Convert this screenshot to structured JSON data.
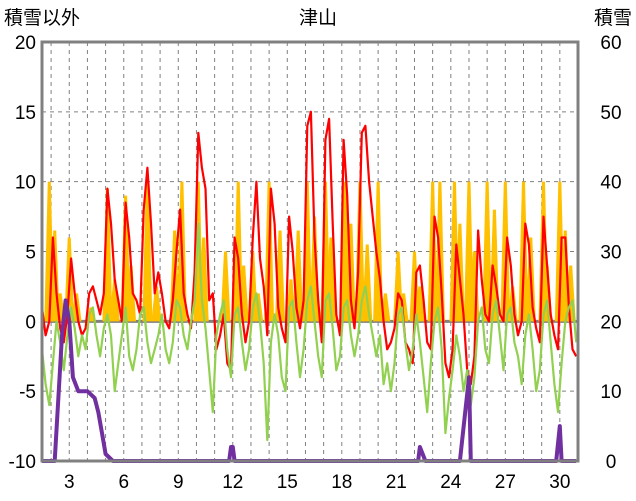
{
  "chart_data": {
    "type": "line",
    "title": "津山",
    "ylabel_left": "積雪以外",
    "ylabel_right": "積雪",
    "x_range": [
      1.5,
      31.0
    ],
    "ylim_left": [
      -10,
      20
    ],
    "ylim_right": [
      0,
      60
    ],
    "x_ticks": [
      3,
      6,
      9,
      12,
      15,
      18,
      21,
      24,
      27,
      30
    ],
    "x_tick_labels": [
      "3",
      "6",
      "9",
      "12",
      "15",
      "18",
      "21",
      "24",
      "27",
      "30"
    ],
    "y_left_ticks": [
      -10,
      -5,
      0,
      5,
      10,
      15,
      20
    ],
    "y_left_tick_labels": [
      "-10",
      "-5",
      "0",
      "5",
      "10",
      "15",
      "20"
    ],
    "y_right_ticks": [
      0,
      10,
      20,
      30,
      40,
      50,
      60
    ],
    "y_right_tick_labels": [
      "0",
      "10",
      "20",
      "30",
      "40",
      "50",
      "60"
    ],
    "grid": "vertical dashed at each day, horizontal dashed at each left tick",
    "colors": {
      "precip": "#ffc000",
      "temp_max_series": "#ff0000",
      "temp_series": "#92d050",
      "snow_depth": "#7030a0",
      "zero_line": "#808080",
      "frame": "#808080"
    },
    "series": [
      {
        "axis": "left",
        "color": "#ffc000",
        "style": "bars",
        "x": [
          1.9,
          2.2,
          2.5,
          3.0,
          3.4,
          4.2,
          5.1,
          5.5,
          6.1,
          6.4,
          7.3,
          7.8,
          8.8,
          9.2,
          10.1,
          10.4,
          11.6,
          12.3,
          12.6,
          13.1,
          13.4,
          14.0,
          14.6,
          15.2,
          15.6,
          16.1,
          16.5,
          17.1,
          17.4,
          18.2,
          18.5,
          19.0,
          19.4,
          20.0,
          20.4,
          21.1,
          21.4,
          22.0,
          22.3,
          23.0,
          23.4,
          24.2,
          24.5,
          25.0,
          25.3,
          26.0,
          26.4,
          27.0,
          27.4,
          28.0,
          28.4,
          29.1,
          29.3,
          30.0,
          30.3,
          30.6
        ],
        "values": [
          10,
          6.5,
          2,
          6,
          2,
          1,
          9.5,
          3,
          9,
          4,
          10,
          2.5,
          6.5,
          10,
          10,
          6,
          5,
          10,
          4,
          5,
          2,
          10,
          6.5,
          3,
          6.5,
          10,
          7.5,
          10,
          6,
          10,
          7,
          10,
          5.5,
          10,
          2,
          5,
          2,
          5,
          2.5,
          10,
          10,
          10,
          7,
          10,
          5,
          10,
          8,
          10,
          2.5,
          10,
          6,
          10,
          4,
          10,
          6.5,
          4
        ]
      },
      {
        "axis": "left",
        "color": "#ff0000",
        "style": "line",
        "x": [
          1.5,
          1.7,
          1.9,
          2.1,
          2.3,
          2.5,
          2.7,
          2.9,
          3.1,
          3.3,
          3.5,
          3.7,
          3.9,
          4.1,
          4.3,
          4.5,
          4.7,
          4.9,
          5.1,
          5.3,
          5.5,
          5.7,
          5.9,
          6.1,
          6.3,
          6.5,
          6.7,
          6.9,
          7.1,
          7.3,
          7.5,
          7.7,
          7.9,
          8.1,
          8.3,
          8.5,
          8.7,
          8.9,
          9.1,
          9.3,
          9.5,
          9.7,
          9.9,
          10.1,
          10.3,
          10.5,
          10.7,
          10.9,
          11.1,
          11.3,
          11.5,
          11.7,
          11.9,
          12.1,
          12.3,
          12.5,
          12.7,
          12.9,
          13.1,
          13.3,
          13.5,
          13.7,
          13.9,
          14.1,
          14.3,
          14.5,
          14.7,
          14.9,
          15.1,
          15.3,
          15.5,
          15.7,
          15.9,
          16.1,
          16.3,
          16.5,
          16.7,
          16.9,
          17.1,
          17.3,
          17.5,
          17.7,
          17.9,
          18.1,
          18.3,
          18.5,
          18.7,
          18.9,
          19.1,
          19.3,
          19.5,
          19.7,
          19.9,
          20.1,
          20.3,
          20.5,
          20.7,
          20.9,
          21.1,
          21.3,
          21.5,
          21.7,
          21.9,
          22.1,
          22.3,
          22.5,
          22.7,
          22.9,
          23.1,
          23.3,
          23.5,
          23.7,
          23.9,
          24.1,
          24.3,
          24.5,
          24.7,
          24.9,
          25.1,
          25.3,
          25.5,
          25.7,
          25.9,
          26.1,
          26.3,
          26.5,
          26.7,
          26.9,
          27.1,
          27.3,
          27.5,
          27.7,
          27.9,
          28.1,
          28.3,
          28.5,
          28.7,
          28.9,
          29.1,
          29.3,
          29.5,
          29.7,
          29.9,
          30.1,
          30.3,
          30.5,
          30.7,
          30.9
        ],
        "values": [
          1.0,
          -1.0,
          0.0,
          6.0,
          2.0,
          -0.5,
          -1.5,
          0.5,
          4.5,
          2.0,
          0.0,
          -1.0,
          -0.5,
          2.0,
          2.5,
          1.5,
          0.5,
          2.0,
          9.5,
          7.0,
          3.0,
          1.5,
          0.0,
          8.5,
          6.0,
          2.0,
          1.5,
          0.5,
          8.0,
          11.0,
          7.0,
          2.0,
          3.5,
          2.0,
          0.0,
          -0.5,
          1.5,
          5.0,
          8.0,
          2.0,
          0.5,
          -0.5,
          3.5,
          13.5,
          11.0,
          9.5,
          1.5,
          2.0,
          -2.0,
          -1.0,
          0.5,
          -3.0,
          -3.5,
          6.0,
          4.5,
          0.5,
          -1.5,
          0.0,
          6.0,
          10.0,
          4.5,
          2.5,
          -1.0,
          9.5,
          7.0,
          1.0,
          -0.5,
          -1.5,
          7.5,
          5.0,
          1.0,
          -0.5,
          1.5,
          14.0,
          15.0,
          6.0,
          1.5,
          -1.5,
          13.0,
          14.5,
          7.0,
          0.5,
          -1.0,
          13.0,
          9.0,
          1.5,
          -0.5,
          3.5,
          13.5,
          14.0,
          10.0,
          7.5,
          5.0,
          3.0,
          0.0,
          -2.0,
          -1.5,
          -0.5,
          2.0,
          1.5,
          -1.5,
          -2.0,
          -3.0,
          3.5,
          4.0,
          1.5,
          -1.5,
          -2.0,
          7.5,
          6.0,
          2.0,
          -3.0,
          -4.0,
          -2.0,
          5.5,
          3.0,
          0.5,
          -3.5,
          -4.5,
          -2.5,
          6.5,
          3.0,
          0.5,
          0.0,
          4.0,
          2.5,
          0.5,
          0.0,
          6.0,
          4.0,
          0.5,
          -1.0,
          0.0,
          7.0,
          5.5,
          1.0,
          -0.5,
          -1.5,
          7.5,
          4.0,
          0.5,
          -1.0,
          -2.0,
          6.0,
          6.0,
          1.0,
          -2.0,
          -2.5
        ]
      },
      {
        "axis": "left",
        "color": "#92d050",
        "style": "line",
        "x": [
          1.5,
          1.7,
          1.9,
          2.1,
          2.3,
          2.5,
          2.7,
          2.9,
          3.1,
          3.3,
          3.5,
          3.7,
          3.9,
          4.1,
          4.3,
          4.5,
          4.7,
          4.9,
          5.1,
          5.3,
          5.5,
          5.7,
          5.9,
          6.1,
          6.3,
          6.5,
          6.7,
          6.9,
          7.1,
          7.3,
          7.5,
          7.7,
          7.9,
          8.1,
          8.3,
          8.5,
          8.7,
          8.9,
          9.1,
          9.3,
          9.5,
          9.7,
          9.9,
          10.1,
          10.3,
          10.5,
          10.7,
          10.9,
          11.1,
          11.3,
          11.5,
          11.7,
          11.9,
          12.1,
          12.3,
          12.5,
          12.7,
          12.9,
          13.1,
          13.3,
          13.5,
          13.7,
          13.9,
          14.1,
          14.3,
          14.5,
          14.7,
          14.9,
          15.1,
          15.3,
          15.5,
          15.7,
          15.9,
          16.1,
          16.3,
          16.5,
          16.7,
          16.9,
          17.1,
          17.3,
          17.5,
          17.7,
          17.9,
          18.1,
          18.3,
          18.5,
          18.7,
          18.9,
          19.1,
          19.3,
          19.5,
          19.7,
          19.9,
          20.1,
          20.3,
          20.5,
          20.7,
          20.9,
          21.1,
          21.3,
          21.5,
          21.7,
          21.9,
          22.1,
          22.3,
          22.5,
          22.7,
          22.9,
          23.1,
          23.3,
          23.5,
          23.7,
          23.9,
          24.1,
          24.3,
          24.5,
          24.7,
          24.9,
          25.1,
          25.3,
          25.5,
          25.7,
          25.9,
          26.1,
          26.3,
          26.5,
          26.7,
          26.9,
          27.1,
          27.3,
          27.5,
          27.7,
          27.9,
          28.1,
          28.3,
          28.5,
          28.7,
          28.9,
          29.1,
          29.3,
          29.5,
          29.7,
          29.9,
          30.1,
          30.3,
          30.5,
          30.7,
          30.9
        ],
        "values": [
          -2.0,
          -4.5,
          -6.0,
          -3.0,
          0.0,
          -1.5,
          -3.5,
          -1.0,
          1.0,
          -0.5,
          -2.5,
          -1.0,
          -2.0,
          0.5,
          1.0,
          -1.0,
          -2.5,
          -0.5,
          0.5,
          -1.0,
          -5.0,
          -3.0,
          -1.0,
          1.0,
          -2.5,
          -3.5,
          -2.0,
          0.5,
          1.0,
          -1.5,
          -3.0,
          -2.0,
          -1.0,
          0.5,
          -2.0,
          -3.0,
          -1.5,
          1.5,
          1.0,
          -1.0,
          -2.0,
          0.0,
          1.5,
          7.0,
          1.5,
          -0.5,
          -3.5,
          -6.5,
          -1.0,
          0.5,
          1.5,
          -2.0,
          -4.0,
          0.5,
          1.0,
          -1.5,
          -3.5,
          -2.0,
          1.0,
          2.0,
          0.0,
          -3.0,
          -8.5,
          -1.5,
          0.5,
          -1.0,
          -4.0,
          -5.0,
          1.0,
          1.5,
          -1.5,
          -4.0,
          -2.0,
          1.5,
          2.5,
          0.0,
          -2.5,
          -4.0,
          1.5,
          2.0,
          -0.5,
          -3.5,
          -2.5,
          1.0,
          1.5,
          -1.0,
          -2.5,
          -1.0,
          1.5,
          2.5,
          0.5,
          -1.0,
          -2.5,
          -1.0,
          -4.5,
          -3.0,
          -5.0,
          -3.0,
          0.5,
          1.0,
          -1.5,
          -3.5,
          -2.0,
          0.5,
          -1.5,
          -4.0,
          -6.5,
          -3.0,
          0.0,
          1.0,
          -2.0,
          -8.0,
          -5.5,
          -3.5,
          -1.0,
          -2.5,
          -5.0,
          -3.5,
          -6.0,
          -4.0,
          0.0,
          1.0,
          -2.0,
          -3.0,
          0.5,
          1.5,
          -1.0,
          -3.5,
          0.5,
          1.0,
          -1.5,
          -2.5,
          -4.5,
          -1.0,
          0.5,
          -2.0,
          -5.0,
          -3.5,
          0.5,
          1.5,
          -1.5,
          -4.5,
          -6.5,
          -3.0,
          0.0,
          1.0,
          1.5,
          -1.5
        ]
      },
      {
        "axis": "right",
        "color": "#7030a0",
        "style": "line",
        "x": [
          1.5,
          2.2,
          2.6,
          2.8,
          3.0,
          3.2,
          3.5,
          4.0,
          4.4,
          4.6,
          4.8,
          5.0,
          5.4,
          10.5,
          11.8,
          11.9,
          12.0,
          12.1,
          22.2,
          22.3,
          22.6,
          24.5,
          25.0,
          25.1,
          25.3,
          29.8,
          30.0,
          30.1,
          30.9
        ],
        "values": [
          0,
          0,
          18,
          23,
          20,
          12,
          10,
          10,
          9,
          7,
          4,
          1,
          0,
          0,
          0,
          2,
          2,
          0,
          0,
          2,
          0,
          0,
          12,
          0,
          0,
          0,
          5,
          0,
          0
        ]
      }
    ]
  }
}
